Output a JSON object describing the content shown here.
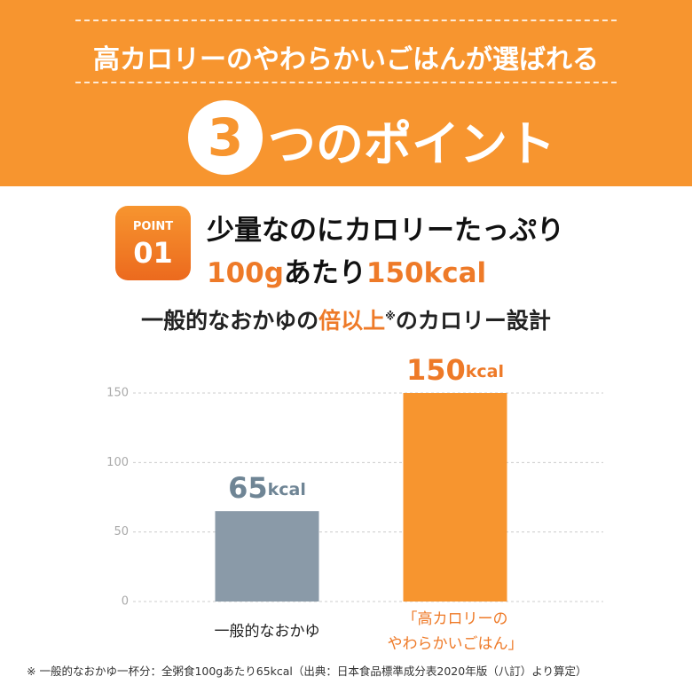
{
  "header": {
    "title": "高カロリーのやわらかいごはんが選ばれる",
    "number": "3",
    "title2": "つのポイント"
  },
  "point": {
    "label": "POINT",
    "number": "01",
    "heading": "少量なのにカロリーたっぷり",
    "line2": [
      "100g",
      "あたり",
      "150kcal"
    ]
  },
  "chart_data": {
    "type": "bar",
    "title_parts": [
      "一般的なおかゆの",
      "倍以上",
      "※",
      "のカロリー設計"
    ],
    "categories": [
      "一般的なおかゆ",
      "「高カロリーの\nやわらかいごはん」"
    ],
    "values": [
      65,
      150
    ],
    "value_unit": "kcal",
    "colors": [
      "#8a9aa8",
      "#f7952f"
    ],
    "ylim": [
      0,
      150
    ],
    "yticks": [
      0,
      50,
      100,
      150
    ],
    "grid": true
  },
  "footnote": "※ 一般的なおかゆ一杯分：全粥食100gあたり65kcal（出典：日本食品標準成分表2020年版（八訂）より算定）"
}
